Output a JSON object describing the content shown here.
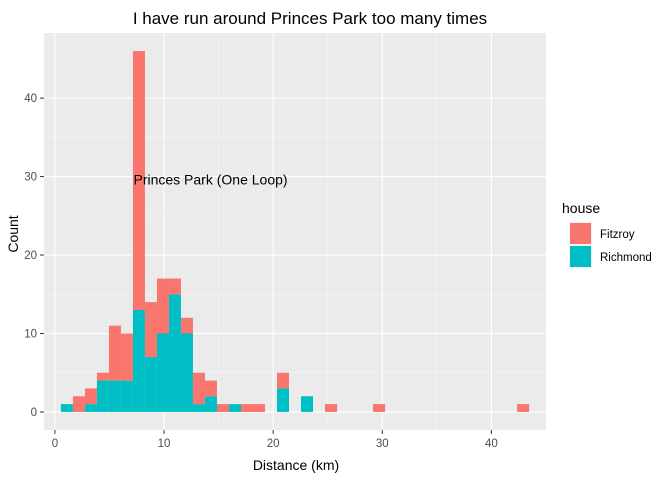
{
  "chart_data": {
    "type": "bar",
    "stacked": true,
    "title": "I have run around Princes Park too many times",
    "xlabel": "Distance (km)",
    "ylabel": "Count",
    "xlim": [
      -1,
      45
    ],
    "ylim": [
      -2.3,
      48.3
    ],
    "xticks": [
      0,
      10,
      20,
      30,
      40
    ],
    "yticks": [
      0,
      10,
      20,
      30,
      40
    ],
    "bin_width": 1.1,
    "grid": true,
    "legend": {
      "title": "house",
      "position": "right"
    },
    "annotation": {
      "text": "Princes Park (One Loop)",
      "x": 7.2,
      "y": 29.6
    },
    "series": [
      {
        "name": "Richmond",
        "color": "#00BFC4",
        "x": [
          1.1,
          2.2,
          3.3,
          4.4,
          5.5,
          6.6,
          7.7,
          8.8,
          9.9,
          11.0,
          12.1,
          13.2,
          14.3,
          15.4,
          16.5,
          17.6,
          18.7,
          19.8,
          20.9,
          22.0,
          23.1,
          24.2,
          25.3,
          26.4,
          27.5,
          28.6,
          29.7,
          30.8,
          31.9,
          33.0,
          34.1,
          35.2,
          36.3,
          37.4,
          38.5,
          39.6,
          40.7,
          41.8,
          42.9
        ],
        "values": [
          1,
          0,
          1,
          4,
          4,
          4,
          13,
          7,
          10,
          15,
          10,
          1,
          2,
          0,
          1,
          0,
          0,
          0,
          3,
          0,
          2,
          0,
          0,
          0,
          0,
          0,
          0,
          0,
          0,
          0,
          0,
          0,
          0,
          0,
          0,
          0,
          0,
          0,
          0
        ]
      },
      {
        "name": "Fitzroy",
        "color": "#F8766D",
        "x": [
          1.1,
          2.2,
          3.3,
          4.4,
          5.5,
          6.6,
          7.7,
          8.8,
          9.9,
          11.0,
          12.1,
          13.2,
          14.3,
          15.4,
          16.5,
          17.6,
          18.7,
          19.8,
          20.9,
          22.0,
          23.1,
          24.2,
          25.3,
          26.4,
          27.5,
          28.6,
          29.7,
          30.8,
          31.9,
          33.0,
          34.1,
          35.2,
          36.3,
          37.4,
          38.5,
          39.6,
          40.7,
          41.8,
          42.9
        ],
        "values": [
          0,
          2,
          2,
          1,
          7,
          6,
          33,
          7,
          7,
          2,
          2,
          4,
          2,
          1,
          0,
          1,
          1,
          0,
          2,
          0,
          0,
          0,
          1,
          0,
          0,
          0,
          1,
          0,
          0,
          0,
          0,
          0,
          0,
          0,
          0,
          0,
          0,
          0,
          1
        ]
      }
    ]
  }
}
